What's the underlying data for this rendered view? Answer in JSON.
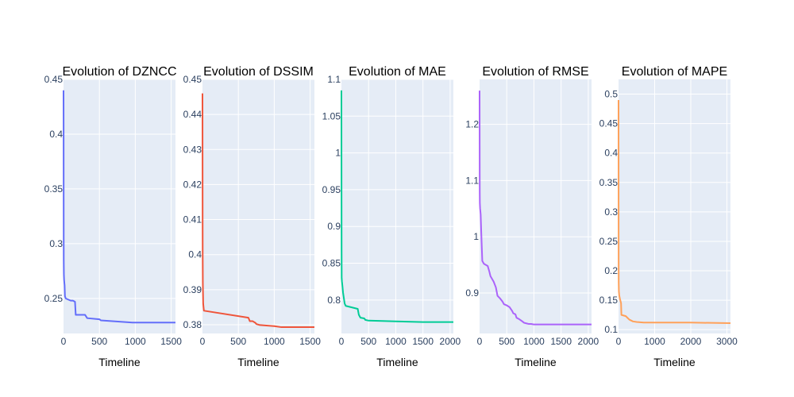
{
  "chart_data": [
    {
      "type": "line",
      "title": "Evolution of DZNCC",
      "xlabel": "Timeline",
      "ylabel": "",
      "color": "#636efa",
      "xlim": [
        0,
        1560
      ],
      "ylim": [
        0.218,
        0.45
      ],
      "xticks": [
        0,
        500,
        1000,
        1500
      ],
      "yticks": [
        0.25,
        0.3,
        0.35,
        0.4,
        0.45
      ],
      "series": [
        {
          "x": [
            0,
            1,
            2,
            3,
            5,
            8,
            12,
            15,
            20,
            30,
            100,
            130,
            160,
            170,
            300,
            330,
            500,
            520,
            960,
            1560
          ],
          "y": [
            0.44,
            0.41,
            0.33,
            0.285,
            0.272,
            0.267,
            0.264,
            0.262,
            0.252,
            0.25,
            0.248,
            0.248,
            0.247,
            0.235,
            0.235,
            0.232,
            0.231,
            0.23,
            0.228,
            0.228
          ]
        }
      ]
    },
    {
      "type": "line",
      "title": "Evolution of DSSIM",
      "xlabel": "Timeline",
      "ylabel": "",
      "color": "#ef553b",
      "xlim": [
        0,
        1560
      ],
      "ylim": [
        0.3775,
        0.45
      ],
      "xticks": [
        0,
        500,
        1000,
        1500
      ],
      "yticks": [
        0.38,
        0.39,
        0.4,
        0.41,
        0.42,
        0.43,
        0.44,
        0.45
      ],
      "series": [
        {
          "x": [
            0,
            1,
            2,
            3,
            5,
            10,
            20,
            640,
            650,
            660,
            700,
            740,
            750,
            800,
            1000,
            1100,
            1560
          ],
          "y": [
            0.446,
            0.43,
            0.41,
            0.4,
            0.392,
            0.386,
            0.384,
            0.382,
            0.3815,
            0.381,
            0.381,
            0.3805,
            0.3802,
            0.3799,
            0.3796,
            0.3793,
            0.3793
          ]
        }
      ]
    },
    {
      "type": "line",
      "title": "Evolution of MAE",
      "xlabel": "Timeline",
      "ylabel": "",
      "color": "#00cc96",
      "xlim": [
        0,
        2060
      ],
      "ylim": [
        0.7545,
        1.1
      ],
      "xticks": [
        0,
        500,
        1000,
        1500,
        2000
      ],
      "yticks": [
        0.8,
        0.85,
        0.9,
        0.95,
        1,
        1.05,
        1.1
      ],
      "series": [
        {
          "x": [
            0,
            1,
            2,
            3,
            5,
            10,
            20,
            30,
            60,
            80,
            300,
            320,
            350,
            420,
            440,
            500,
            1000,
            1500,
            2060
          ],
          "y": [
            1.085,
            1.0,
            0.93,
            0.87,
            0.83,
            0.825,
            0.818,
            0.81,
            0.795,
            0.792,
            0.788,
            0.78,
            0.776,
            0.775,
            0.773,
            0.772,
            0.771,
            0.77,
            0.77
          ]
        }
      ]
    },
    {
      "type": "line",
      "title": "Evolution of RMSE",
      "xlabel": "Timeline",
      "ylabel": "",
      "color": "#ab63fa",
      "xlim": [
        0,
        2060
      ],
      "ylim": [
        0.828,
        1.28
      ],
      "xticks": [
        0,
        500,
        1000,
        1500,
        2000
      ],
      "yticks": [
        0.9,
        1,
        1.1,
        1.2
      ],
      "series": [
        {
          "x": [
            0,
            1,
            2,
            3,
            5,
            10,
            20,
            30,
            50,
            80,
            150,
            180,
            200,
            260,
            300,
            330,
            380,
            420,
            450,
            500,
            550,
            600,
            620,
            660,
            680,
            720,
            780,
            820,
            860,
            900,
            950,
            1000,
            1500,
            2060
          ],
          "y": [
            1.26,
            1.2,
            1.13,
            1.08,
            1.06,
            1.05,
            1.04,
            1.01,
            0.957,
            0.952,
            0.948,
            0.938,
            0.93,
            0.92,
            0.91,
            0.895,
            0.89,
            0.885,
            0.88,
            0.878,
            0.875,
            0.868,
            0.864,
            0.862,
            0.856,
            0.854,
            0.85,
            0.847,
            0.846,
            0.845,
            0.845,
            0.844,
            0.844,
            0.844
          ]
        }
      ]
    },
    {
      "type": "line",
      "title": "Evolution of MAPE",
      "xlabel": "Timeline",
      "ylabel": "",
      "color": "#ffa15a",
      "xlim": [
        0,
        3100
      ],
      "ylim": [
        0.0935,
        0.525
      ],
      "xticks": [
        0,
        1000,
        2000,
        3000
      ],
      "yticks": [
        0.1,
        0.15,
        0.2,
        0.25,
        0.3,
        0.35,
        0.4,
        0.45,
        0.5
      ],
      "series": [
        {
          "x": [
            0,
            1,
            2,
            3,
            5,
            10,
            20,
            40,
            70,
            80,
            200,
            250,
            300,
            400,
            500,
            700,
            1000,
            2000,
            3100
          ],
          "y": [
            0.49,
            0.4,
            0.3,
            0.22,
            0.18,
            0.165,
            0.158,
            0.152,
            0.145,
            0.125,
            0.123,
            0.12,
            0.117,
            0.114,
            0.113,
            0.112,
            0.112,
            0.112,
            0.111
          ]
        }
      ]
    }
  ]
}
